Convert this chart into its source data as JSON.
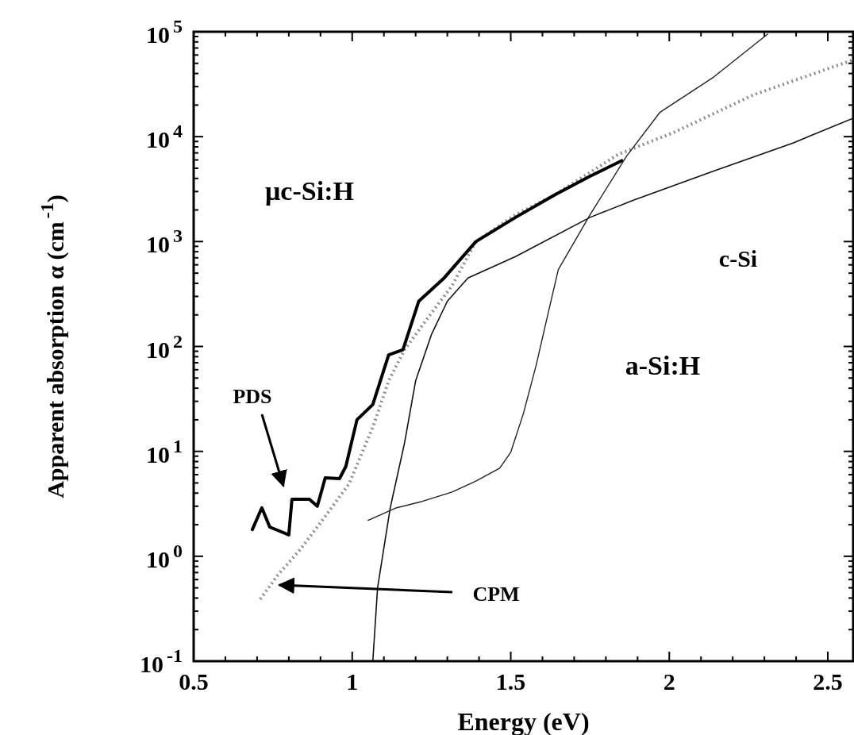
{
  "chart_data": {
    "type": "line",
    "xlabel": "Energy (eV)",
    "ylabel": "Apparent absorption α (cm$^{-1}$)",
    "log": "y",
    "grid": false,
    "marker": "none",
    "xlim": [
      0.5,
      2.58
    ],
    "xticks": [
      0.5,
      {
        "value": 0.6,
        "label": null
      },
      {
        "value": 0.7,
        "label": null
      },
      {
        "value": 0.8,
        "label": null
      },
      {
        "value": 0.9,
        "label": null
      },
      1,
      {
        "value": 1.1,
        "label": null
      },
      {
        "value": 1.2,
        "label": null
      },
      {
        "value": 1.3,
        "label": null
      },
      {
        "value": 1.4,
        "label": null
      },
      1.5,
      {
        "value": 1.6,
        "label": null
      },
      {
        "value": 1.7,
        "label": null
      },
      {
        "value": 1.8,
        "label": null
      },
      {
        "value": 1.9,
        "label": null
      },
      2,
      {
        "value": 2.1,
        "label": null
      },
      {
        "value": 2.2,
        "label": null
      },
      {
        "value": 2.3,
        "label": null
      },
      {
        "value": 2.4,
        "label": null
      },
      2.5
    ],
    "ylim": [
      0.1,
      100000
    ],
    "yticks": [
      {
        "value": 0.1,
        "label": "10$^{-1}$"
      },
      {
        "value": 0.2,
        "label": null
      },
      {
        "value": 0.3,
        "label": null
      },
      {
        "value": 0.4,
        "label": null
      },
      {
        "value": 0.5,
        "label": null
      },
      {
        "value": 0.6,
        "label": null
      },
      {
        "value": 0.7,
        "label": null
      },
      {
        "value": 0.8,
        "label": null
      },
      {
        "value": 0.9,
        "label": null
      },
      {
        "value": 1,
        "label": "10$^{0}$"
      },
      {
        "value": 2,
        "label": null
      },
      {
        "value": 3,
        "label": null
      },
      {
        "value": 4,
        "label": null
      },
      {
        "value": 5,
        "label": null
      },
      {
        "value": 6,
        "label": null
      },
      {
        "value": 7,
        "label": null
      },
      {
        "value": 8,
        "label": null
      },
      {
        "value": 9,
        "label": null
      },
      {
        "value": 10,
        "label": "10$^{1}$"
      },
      {
        "value": 20,
        "label": null
      },
      {
        "value": 30,
        "label": null
      },
      {
        "value": 40,
        "label": null
      },
      {
        "value": 50,
        "label": null
      },
      {
        "value": 60,
        "label": null
      },
      {
        "value": 70,
        "label": null
      },
      {
        "value": 80,
        "label": null
      },
      {
        "value": 90,
        "label": null
      },
      {
        "value": 100,
        "label": "10$^{2}$"
      },
      {
        "value": 200,
        "label": null
      },
      {
        "value": 300,
        "label": null
      },
      {
        "value": 400,
        "label": null
      },
      {
        "value": 500,
        "label": null
      },
      {
        "value": 600,
        "label": null
      },
      {
        "value": 700,
        "label": null
      },
      {
        "value": 800,
        "label": null
      },
      {
        "value": 900,
        "label": null
      },
      {
        "value": 1000,
        "label": "10$^{3}$"
      },
      {
        "value": 2000,
        "label": null
      },
      {
        "value": 3000,
        "label": null
      },
      {
        "value": 4000,
        "label": null
      },
      {
        "value": 5000,
        "label": null
      },
      {
        "value": 6000,
        "label": null
      },
      {
        "value": 7000,
        "label": null
      },
      {
        "value": 8000,
        "label": null
      },
      {
        "value": 9000,
        "label": null
      },
      {
        "value": 10000,
        "label": "10$^{4}$"
      },
      {
        "value": 20000,
        "label": null
      },
      {
        "value": 30000,
        "label": null
      },
      {
        "value": 40000,
        "label": null
      },
      {
        "value": 50000,
        "label": null
      },
      {
        "value": 60000,
        "label": null
      },
      {
        "value": 70000,
        "label": null
      },
      {
        "value": 80000,
        "label": null
      },
      {
        "value": 90000,
        "label": null
      },
      {
        "value": 100000,
        "label": "10$^{5}$"
      }
    ],
    "series": [
      {
        "color": "#8c8c8c",
        "line_style": "dotted",
        "x": [
          0.71,
          0.765,
          0.84,
          0.915,
          0.99,
          1.065,
          1.115,
          1.165,
          1.24,
          1.315,
          1.39,
          1.515,
          1.64,
          1.84,
          2.015,
          2.265,
          2.58
        ],
        "values": [
          0.39,
          0.66,
          1.2,
          2.4,
          4.9,
          17,
          47,
          93,
          190,
          380,
          1000,
          1800,
          2800,
          6800,
          11000,
          25000,
          54000
        ]
      },
      {
        "color": "#000000",
        "line_style": "solid",
        "x": [
          0.685,
          0.715,
          0.74,
          0.8,
          0.81,
          0.865,
          0.89,
          0.915,
          0.96,
          0.98,
          1.015,
          1.065,
          1.115,
          1.16,
          1.21,
          1.29,
          1.39,
          1.515,
          1.64,
          1.75,
          1.85
        ],
        "values": [
          1.8,
          2.9,
          1.9,
          1.6,
          3.5,
          3.5,
          3.0,
          5.6,
          5.5,
          7.2,
          20,
          28,
          83,
          93,
          270,
          450,
          1000,
          1700,
          2800,
          4200,
          5900
        ]
      },
      {
        "color": "#111111",
        "line_style": "solid",
        "x": [
          1.065,
          1.08,
          1.12,
          1.165,
          1.2,
          1.25,
          1.3,
          1.365,
          1.515,
          1.75,
          1.89,
          2.14,
          2.39,
          2.58
        ],
        "values": [
          0.1,
          0.5,
          2.9,
          12,
          47,
          130,
          270,
          450,
          720,
          1700,
          2500,
          4700,
          8700,
          15000
        ]
      },
      {
        "color": "#222222",
        "line_style": "solid",
        "x": [
          1.05,
          1.14,
          1.215,
          1.315,
          1.39,
          1.465,
          1.5,
          1.54,
          1.58,
          1.615,
          1.65,
          1.75,
          1.865,
          1.97,
          2.14,
          2.31
        ],
        "values": [
          2.2,
          2.9,
          3.3,
          4.1,
          5.2,
          6.9,
          9.8,
          23,
          66,
          190,
          540,
          1800,
          6500,
          17000,
          37000,
          95000
        ]
      }
    ],
    "annotations": [
      "μc-Si:H",
      "PDS",
      "CPM",
      "a-Si:H",
      "c-Si"
    ]
  }
}
